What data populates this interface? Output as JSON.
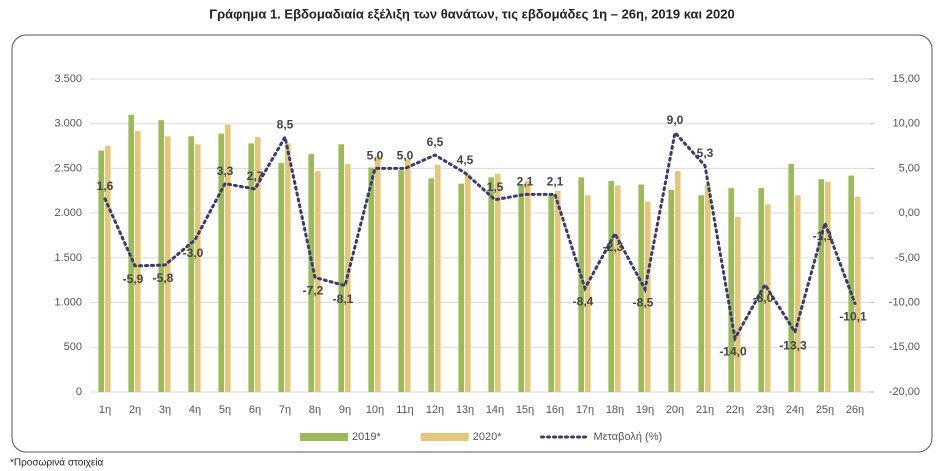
{
  "chart_data": {
    "type": "bar",
    "title": "Γράφημα 1.  Εβδομαδιαία εξέλιξη των θανάτων, τις εβδομάδες 1η – 26η, 2019 και 2020",
    "footnote": "*Προσωρινά στοιχεία",
    "categories": [
      "1η",
      "2η",
      "3η",
      "4η",
      "5η",
      "6η",
      "7η",
      "8η",
      "9η",
      "10η",
      "11η",
      "12η",
      "13η",
      "14η",
      "15η",
      "16η",
      "17η",
      "18η",
      "19η",
      "20η",
      "21η",
      "22η",
      "23η",
      "24η",
      "25η",
      "26η"
    ],
    "series": [
      {
        "name": "2019*",
        "color": "#9bbb59",
        "values": [
          2700,
          3100,
          3040,
          2860,
          2890,
          2780,
          2560,
          2660,
          2770,
          2510,
          2480,
          2390,
          2330,
          2400,
          2310,
          2200,
          2400,
          2360,
          2320,
          2260,
          2200,
          2280,
          2280,
          2550,
          2380,
          2420
        ]
      },
      {
        "name": "2020*",
        "color": "#e3c77b",
        "values": [
          2750,
          2920,
          2860,
          2770,
          2990,
          2850,
          2780,
          2470,
          2550,
          2640,
          2600,
          2540,
          2440,
          2440,
          2360,
          2250,
          2200,
          2310,
          2130,
          2470,
          2320,
          1960,
          2100,
          2200,
          2350,
          2180
        ]
      },
      {
        "name": "Μεταβολή (%)",
        "color": "#3b3b6d",
        "type": "line",
        "axis": "y2",
        "values": [
          1.6,
          -5.9,
          -5.8,
          -3.0,
          3.3,
          2.7,
          8.5,
          -7.2,
          -8.1,
          5.0,
          5.0,
          6.5,
          4.5,
          1.5,
          2.1,
          2.1,
          -8.4,
          -2.3,
          -8.5,
          9.0,
          5.3,
          -14.0,
          -8.0,
          -13.3,
          -1.1,
          -10.1
        ],
        "value_labels": [
          "1,6",
          "-5,9",
          "-5,8",
          "-3,0",
          "3,3",
          "2,7",
          "8,5",
          "-7,2",
          "-8,1",
          "5,0",
          "5,0",
          "6,5",
          "4,5",
          "1,5",
          "2,1",
          "2,1",
          "-8,4",
          "-2,3",
          "-8,5",
          "9,0",
          "5,3",
          "-14,0",
          "-8,0",
          "-13,3",
          "-1,1",
          "-10,1"
        ]
      }
    ],
    "ylim": [
      0,
      3500
    ],
    "yticks": [
      0,
      500,
      {
        "value": 1000,
        "label": "1.000"
      },
      {
        "value": 1500,
        "label": "1.500"
      },
      {
        "value": 2000,
        "label": "2.000"
      },
      {
        "value": 2500,
        "label": "2.500"
      },
      {
        "value": 3000,
        "label": "3.000"
      },
      {
        "value": 3500,
        "label": "3.500"
      }
    ],
    "y2lim": [
      -20,
      15
    ],
    "y2ticks": [
      {
        "value": -20,
        "label": "-20,00"
      },
      {
        "value": -15,
        "label": "-15,00"
      },
      {
        "value": -10,
        "label": "-10,00"
      },
      {
        "value": -5,
        "label": "-5,00"
      },
      {
        "value": 0,
        "label": "0,00"
      },
      {
        "value": 5,
        "label": "5,00"
      },
      {
        "value": 10,
        "label": "10,00"
      },
      {
        "value": 15,
        "label": "15,00"
      }
    ],
    "grid": true,
    "legend": "bottom"
  }
}
